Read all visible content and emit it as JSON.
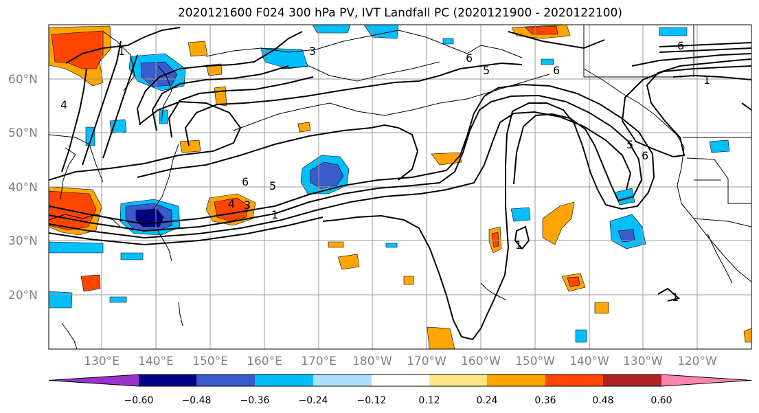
{
  "title": "2020121600 F024 300 hPa PV, IVT Landfall PC (2020121900 - 2020122100)",
  "lat_labels": [
    "60°N",
    "50°N",
    "40°N",
    "30°N",
    "20°N"
  ],
  "lon_labels": [
    "130°E",
    "140°E",
    "150°E",
    "160°E",
    "170°E",
    "180°W",
    "170°W",
    "160°W",
    "150°W",
    "140°W",
    "130°W",
    "120°W"
  ],
  "colorbar": {
    "colors": [
      "#9932CC",
      "#00008B",
      "#3A5BCC",
      "#00BFFF",
      "#ADDFFF",
      "#FFFFFF",
      "#FFE680",
      "#FFA500",
      "#FF4500",
      "#B22222",
      "#FF85B0"
    ],
    "tick_labels": [
      "−0.60",
      "−0.48",
      "−0.36",
      "−0.24",
      "−0.12",
      "0.12",
      "0.24",
      "0.36",
      "0.48",
      "0.60"
    ]
  },
  "contour_labels": [
    "1",
    "1",
    "1",
    "1",
    "1",
    "3",
    "3",
    "4",
    "4",
    "5",
    "5",
    "5",
    "6",
    "6",
    "6",
    "6",
    "6"
  ],
  "colors": {
    "grid": "#999999",
    "contour": "#000000",
    "coast": "#000000"
  }
}
